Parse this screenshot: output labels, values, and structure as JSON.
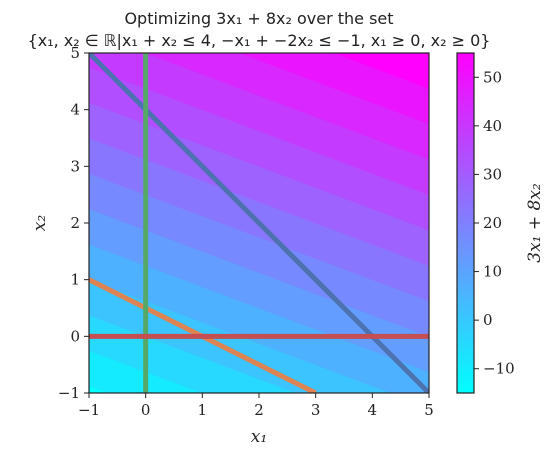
{
  "chart_data": {
    "type": "contour",
    "title_lines": [
      "Optimizing 3x₁ + 8x₂ over the set",
      "{x₁, x₂ ∈ ℝ|x₁ + x₂ ≤ 4, −x₁ + −2x₂ ≤ −1, x₁ ≥ 0, x₂ ≥ 0}"
    ],
    "xlabel": "x₁",
    "ylabel": "x₂",
    "colorbar_label": "3x₁ + 8x₂",
    "xlim": [
      -1,
      5
    ],
    "ylim": [
      -1,
      5
    ],
    "xticks": [
      -1,
      0,
      1,
      2,
      3,
      4,
      5
    ],
    "yticks": [
      -1,
      0,
      1,
      2,
      3,
      4,
      5
    ],
    "xtick_labels": [
      "−1",
      "0",
      "1",
      "2",
      "3",
      "4",
      "5"
    ],
    "ytick_labels": [
      "−1",
      "0",
      "1",
      "2",
      "3",
      "4",
      "5"
    ],
    "colorbar_range": [
      -15,
      55
    ],
    "colorbar_ticks": [
      -10,
      0,
      10,
      20,
      30,
      40,
      50
    ],
    "colorbar_tick_labels": [
      "−10",
      "0",
      "10",
      "20",
      "30",
      "40",
      "50"
    ],
    "objective": {
      "c1": 3,
      "c2": 8
    },
    "contour_levels": [
      -15,
      -10,
      -5,
      0,
      5,
      10,
      15,
      20,
      25,
      30,
      35,
      40,
      45,
      50,
      55
    ],
    "colormap": [
      "#00ffff",
      "#ff00ff"
    ],
    "constraint_lines": [
      {
        "points": [
          [
            -1,
            5
          ],
          [
            5,
            -1
          ]
        ],
        "color": "#4c72b0"
      },
      {
        "points": [
          [
            -1,
            1
          ],
          [
            3,
            -1
          ]
        ],
        "color": "#dd8452"
      },
      {
        "points": [
          [
            0,
            -1
          ],
          [
            0,
            5
          ]
        ],
        "color": "#55a868"
      },
      {
        "points": [
          [
            -1,
            0
          ],
          [
            5,
            0
          ]
        ],
        "color": "#c44e52"
      }
    ]
  }
}
